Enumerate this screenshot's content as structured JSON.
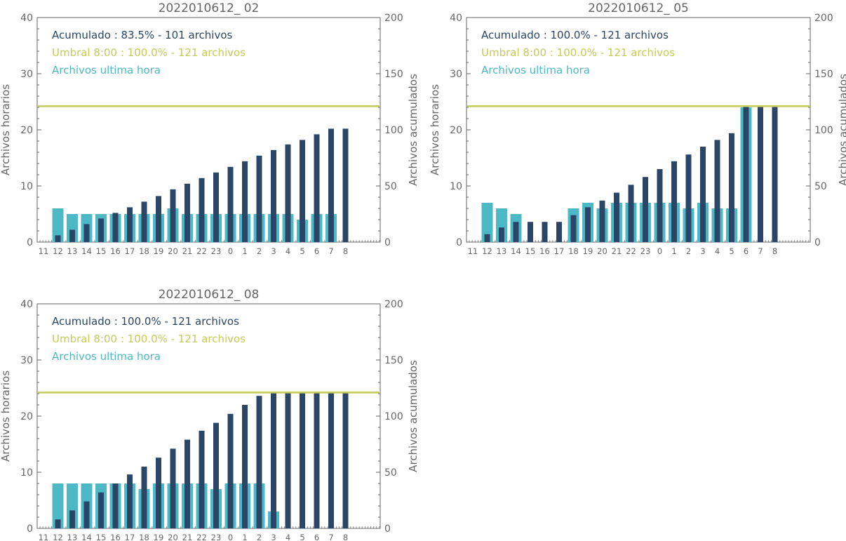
{
  "colors": {
    "hourly": "#4db8c6",
    "cumulative": "#2b4566",
    "threshold": "#c3cc5a",
    "axis": "#666666",
    "text": "#666666"
  },
  "chart_data": [
    {
      "type": "bar",
      "title": "2022010612_ 02",
      "ylabel_left": "Archivos horarios",
      "ylabel_right": "Archivos acumulados",
      "ylim_left": [
        0,
        40
      ],
      "ylim_right": [
        0,
        200
      ],
      "yticks_left": [
        "0",
        "10",
        "20",
        "30",
        "40"
      ],
      "yticks_right": [
        "0",
        "50",
        "100",
        "150",
        "200"
      ],
      "categories": [
        "11",
        "12",
        "13",
        "14",
        "15",
        "16",
        "17",
        "18",
        "19",
        "20",
        "21",
        "22",
        "23",
        "0",
        "1",
        "2",
        "3",
        "4",
        "5",
        "6",
        "7",
        "8"
      ],
      "legend": [
        {
          "text": "Acumulado : 83.5% - 101 archivos",
          "color": "cumulative"
        },
        {
          "text": "Umbral 8:00 : 100.0% - 121 archivos",
          "color": "threshold"
        },
        {
          "text": "Archivos ultima hora",
          "color": "hourly"
        }
      ],
      "threshold": 121,
      "series": [
        {
          "name": "Archivos ultima hora",
          "axis": "left",
          "values": [
            0,
            6,
            5,
            5,
            5,
            5,
            5,
            5,
            5,
            6,
            5,
            5,
            5,
            5,
            5,
            5,
            5,
            5,
            4,
            5,
            5,
            0
          ]
        },
        {
          "name": "Acumulado",
          "axis": "right",
          "values": [
            0,
            6,
            11,
            16,
            21,
            26,
            31,
            36,
            41,
            47,
            52,
            57,
            62,
            67,
            72,
            77,
            82,
            87,
            91,
            96,
            101,
            101
          ]
        }
      ]
    },
    {
      "type": "bar",
      "title": "2022010612_ 05",
      "ylabel_left": "Archivos horarios",
      "ylabel_right": "Archivos acumulados",
      "ylim_left": [
        0,
        40
      ],
      "ylim_right": [
        0,
        200
      ],
      "yticks_left": [
        "0",
        "10",
        "20",
        "30",
        "40"
      ],
      "yticks_right": [
        "0",
        "50",
        "100",
        "150",
        "200"
      ],
      "categories": [
        "11",
        "12",
        "13",
        "14",
        "15",
        "16",
        "17",
        "18",
        "19",
        "20",
        "21",
        "22",
        "23",
        "0",
        "1",
        "2",
        "3",
        "4",
        "5",
        "6",
        "7",
        "8"
      ],
      "legend": [
        {
          "text": "Acumulado : 100.0% - 121 archivos",
          "color": "cumulative"
        },
        {
          "text": "Umbral 8:00 : 100.0% - 121 archivos",
          "color": "threshold"
        },
        {
          "text": "Archivos ultima hora",
          "color": "hourly"
        }
      ],
      "threshold": 121,
      "series": [
        {
          "name": "Archivos ultima hora",
          "axis": "left",
          "values": [
            0,
            7,
            6,
            5,
            0,
            0,
            0,
            6,
            7,
            6,
            7,
            7,
            7,
            7,
            7,
            6,
            7,
            6,
            6,
            24,
            0,
            0
          ]
        },
        {
          "name": "Acumulado",
          "axis": "right",
          "values": [
            0,
            7,
            13,
            18,
            18,
            18,
            18,
            24,
            31,
            37,
            44,
            51,
            58,
            65,
            72,
            78,
            85,
            91,
            97,
            121,
            121,
            121
          ]
        }
      ]
    },
    {
      "type": "bar",
      "title": "2022010612_ 08",
      "ylabel_left": "Archivos horarios",
      "ylabel_right": "Archivos acumulados",
      "ylim_left": [
        0,
        40
      ],
      "ylim_right": [
        0,
        200
      ],
      "yticks_left": [
        "0",
        "10",
        "20",
        "30",
        "40"
      ],
      "yticks_right": [
        "0",
        "50",
        "100",
        "150",
        "200"
      ],
      "categories": [
        "11",
        "12",
        "13",
        "14",
        "15",
        "16",
        "17",
        "18",
        "19",
        "20",
        "21",
        "22",
        "23",
        "0",
        "1",
        "2",
        "3",
        "4",
        "5",
        "6",
        "7",
        "8"
      ],
      "legend": [
        {
          "text": "Acumulado : 100.0% - 121 archivos",
          "color": "cumulative"
        },
        {
          "text": "Umbral 8:00 : 100.0% - 121 archivos",
          "color": "threshold"
        },
        {
          "text": "Archivos ultima hora",
          "color": "hourly"
        }
      ],
      "threshold": 121,
      "series": [
        {
          "name": "Archivos ultima hora",
          "axis": "left",
          "values": [
            0,
            8,
            8,
            8,
            8,
            8,
            8,
            7,
            8,
            8,
            8,
            8,
            7,
            8,
            8,
            8,
            3,
            0,
            0,
            0,
            0,
            0
          ]
        },
        {
          "name": "Acumulado",
          "axis": "right",
          "values": [
            0,
            8,
            16,
            24,
            32,
            40,
            48,
            55,
            63,
            71,
            79,
            87,
            94,
            102,
            110,
            118,
            121,
            121,
            121,
            121,
            121,
            121
          ]
        }
      ]
    }
  ]
}
